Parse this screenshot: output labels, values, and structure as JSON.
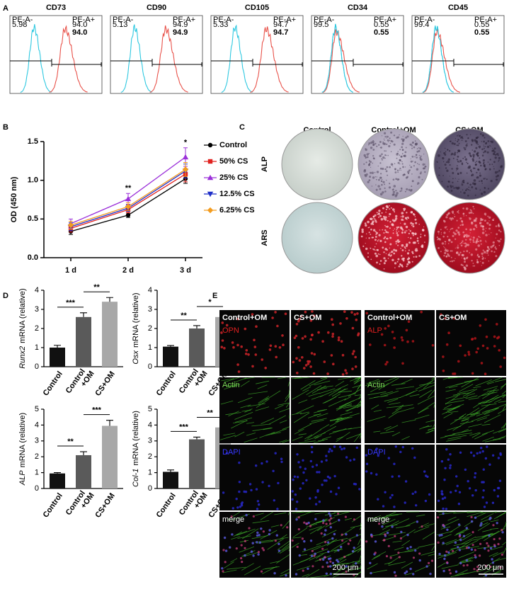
{
  "panel_labels": [
    "A",
    "B",
    "C",
    "D",
    "E"
  ],
  "flow": [
    {
      "title": "CD73",
      "neg_gate": "PE-A-",
      "neg_value": "5.98",
      "pos_gate": "PE-A+",
      "pos_value": "94.0",
      "highlight": "94.0"
    },
    {
      "title": "CD90",
      "neg_gate": "PE-A-",
      "neg_value": "5.13",
      "pos_gate": "PE-A+",
      "pos_value": "94.9",
      "highlight": "94.9"
    },
    {
      "title": "CD105",
      "neg_gate": "PE-A-",
      "neg_value": "5.33",
      "pos_gate": "PE-A+",
      "pos_value": "94.7",
      "highlight": "94.7"
    },
    {
      "title": "CD34",
      "neg_gate": "PE-A-",
      "neg_value": "99.5",
      "pos_gate": "PE-A+",
      "pos_value": "0.55",
      "highlight": "0.55"
    },
    {
      "title": "CD45",
      "neg_gate": "PE-A-",
      "neg_value": "99.4",
      "pos_gate": "PE-A+",
      "pos_value": "0.55",
      "highlight": "0.55"
    }
  ],
  "chart_data": [
    {
      "type": "line",
      "ylabel": "OD (450 nm)",
      "categories": [
        "1 d",
        "2 d",
        "3 d"
      ],
      "ylim": [
        0,
        1.5
      ],
      "yticks": [
        {
          "value": 0,
          "label": "0.0"
        },
        0.5,
        {
          "value": 1,
          "label": "1.0"
        },
        {
          "value": 1.5,
          "label": "1.5"
        }
      ],
      "significance": [
        null,
        "**",
        "*"
      ],
      "series": [
        {
          "name": "Control",
          "color": "#000000",
          "marker": "circle",
          "values": [
            0.34,
            0.55,
            1.02
          ],
          "errors": [
            0.04,
            0.03,
            0.06
          ]
        },
        {
          "name": "50% CS",
          "color": "#e0221f",
          "marker": "square",
          "values": [
            0.38,
            0.62,
            1.08
          ],
          "errors": [
            0.05,
            0.04,
            0.1
          ]
        },
        {
          "name": "25% CS",
          "color": "#9b30d9",
          "marker": "triangle-up",
          "values": [
            0.44,
            0.76,
            1.3
          ],
          "errors": [
            0.06,
            0.07,
            0.12
          ]
        },
        {
          "name": "12.5% CS",
          "color": "#1f2fc8",
          "marker": "triangle-down",
          "values": [
            0.4,
            0.64,
            1.12
          ],
          "errors": [
            0.05,
            0.04,
            0.09
          ]
        },
        {
          "name": "6.25% CS",
          "color": "#f39c1f",
          "marker": "diamond",
          "values": [
            0.42,
            0.66,
            1.14
          ],
          "errors": [
            0.05,
            0.05,
            0.09
          ]
        }
      ]
    },
    {
      "type": "bar",
      "ylabel": {
        "gene": "Runx2",
        "unit": "mRNA (relative)"
      },
      "categories": [
        "Control",
        "Control\n+OM",
        "CS+OM"
      ],
      "values": [
        1.0,
        2.6,
        3.4
      ],
      "errors": [
        0.12,
        0.22,
        0.22
      ],
      "colors": [
        "#111111",
        "#5a5a5a",
        "#a8a8a8"
      ],
      "ylim": [
        0,
        4
      ],
      "yticks": [
        0,
        1,
        2,
        3,
        4
      ],
      "significance": [
        "***",
        "**"
      ]
    },
    {
      "type": "bar",
      "ylabel": {
        "gene": "Osx",
        "unit": "mRNA (relative)"
      },
      "categories": [
        "Control",
        "Control\n+OM",
        "CS+OM"
      ],
      "values": [
        1.05,
        2.0,
        2.6
      ],
      "errors": [
        0.06,
        0.15,
        0.25
      ],
      "colors": [
        "#111111",
        "#5a5a5a",
        "#a8a8a8"
      ],
      "ylim": [
        0,
        4
      ],
      "yticks": [
        0,
        1,
        2,
        3,
        4
      ],
      "significance": [
        "**",
        "*"
      ]
    },
    {
      "type": "bar",
      "ylabel": {
        "gene": "ALP",
        "unit": "mRNA (relative)"
      },
      "categories": [
        "Control",
        "Control\n+OM",
        "CS+OM"
      ],
      "values": [
        0.95,
        2.1,
        3.95
      ],
      "errors": [
        0.05,
        0.22,
        0.35
      ],
      "colors": [
        "#111111",
        "#5a5a5a",
        "#a8a8a8"
      ],
      "ylim": [
        0,
        5
      ],
      "yticks": [
        0,
        1,
        2,
        3,
        4,
        5
      ],
      "significance": [
        "**",
        "***"
      ]
    },
    {
      "type": "bar",
      "ylabel": {
        "gene": "Col-1",
        "unit": "mRNA (relative)"
      },
      "categories": [
        "Control",
        "Control\n+OM",
        "CS+OM"
      ],
      "values": [
        1.05,
        3.1,
        3.85
      ],
      "errors": [
        0.12,
        0.14,
        0.28
      ],
      "colors": [
        "#111111",
        "#5a5a5a",
        "#a8a8a8"
      ],
      "ylim": [
        0,
        5
      ],
      "yticks": [
        0,
        1,
        2,
        3,
        4,
        5
      ],
      "significance": [
        "***",
        "**"
      ]
    }
  ],
  "staining": {
    "columns": [
      "Control",
      "Control+OM",
      "CS+OM"
    ],
    "rows": [
      "ALP",
      "ARS"
    ]
  },
  "fluorescence": [
    {
      "columns": [
        "Control+OM",
        "CS+OM"
      ],
      "rows": [
        {
          "label": "OPN",
          "color": "#e02020"
        },
        {
          "label": "Actin",
          "color": "#7fdc5a"
        },
        {
          "label": "DAPI",
          "color": "#3838ff"
        },
        {
          "label": "merge",
          "color": "#ffffff"
        }
      ],
      "scale": "200 μm"
    },
    {
      "columns": [
        "Control+OM",
        "CS+OM"
      ],
      "rows": [
        {
          "label": "ALP",
          "color": "#e02020"
        },
        {
          "label": "Actin",
          "color": "#7fdc5a"
        },
        {
          "label": "DAPI",
          "color": "#3838ff"
        },
        {
          "label": "merge",
          "color": "#ffffff"
        }
      ],
      "scale": "200 μm"
    }
  ]
}
